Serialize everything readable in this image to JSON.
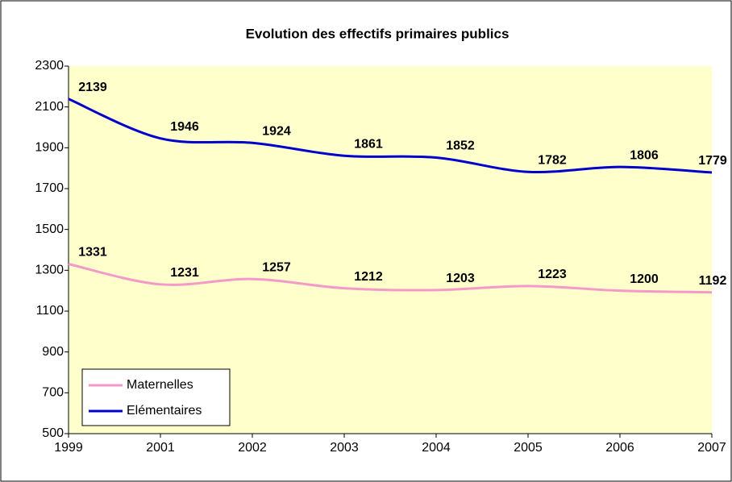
{
  "chart_data": {
    "type": "line",
    "title": "Evolution des effectifs primaires publics",
    "categories": [
      "1999",
      "2001",
      "2002",
      "2003",
      "2004",
      "2005",
      "2006",
      "2007"
    ],
    "series": [
      {
        "name": "Maternelles",
        "color": "#f49ac8",
        "values": [
          1331,
          1231,
          1257,
          1212,
          1203,
          1223,
          1200,
          1192
        ]
      },
      {
        "name": "Elémentaires",
        "color": "#0000cc",
        "values": [
          2139,
          1946,
          1924,
          1861,
          1852,
          1782,
          1806,
          1779
        ]
      }
    ],
    "ylim": [
      500,
      2300
    ],
    "yticks": [
      500,
      700,
      900,
      1100,
      1300,
      1500,
      1700,
      1900,
      2100,
      2300
    ],
    "grid": false,
    "legend": "lower left",
    "background": "#ffffcc"
  }
}
